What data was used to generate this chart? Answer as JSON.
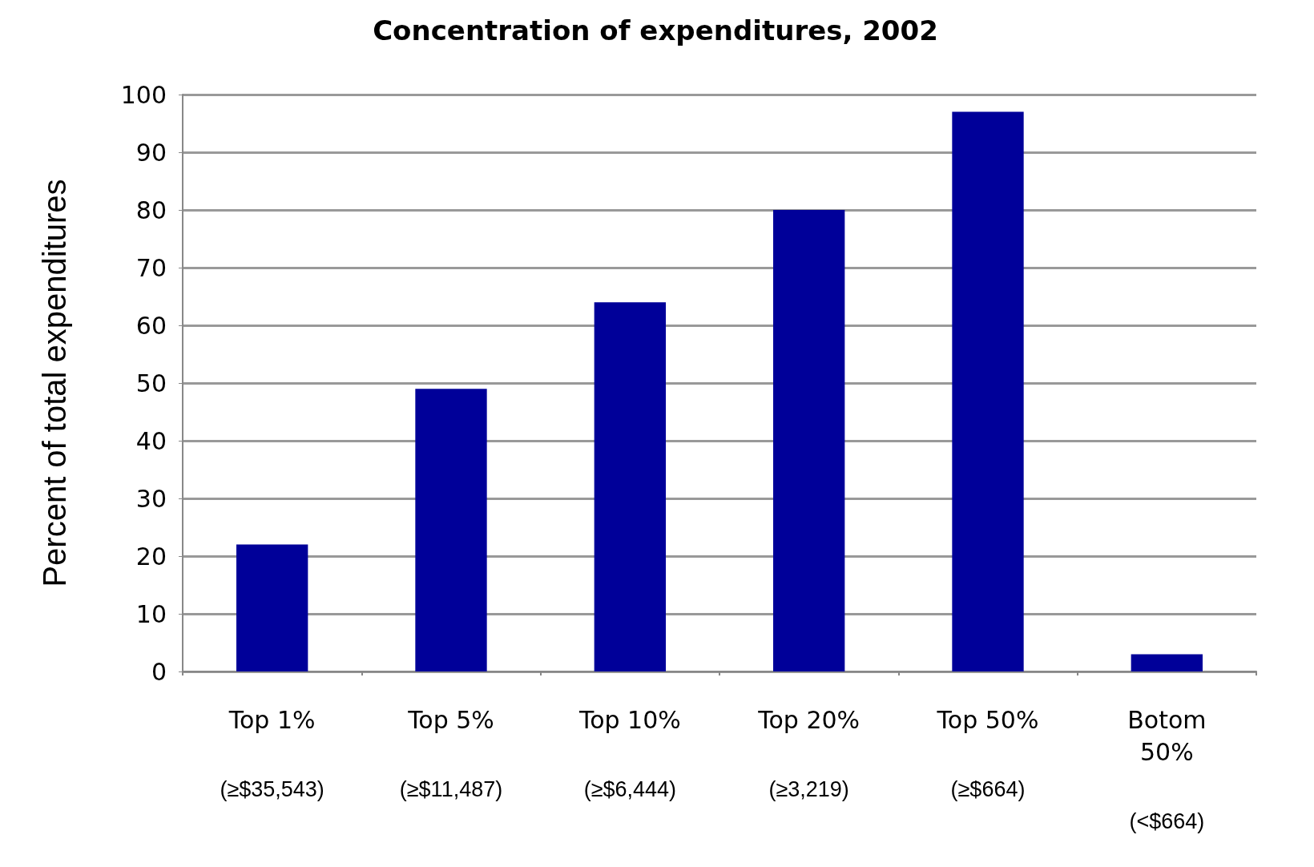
{
  "chart_data": {
    "type": "bar",
    "title": "Concentration of expenditures, 2002",
    "ylabel": "Percent of total expenditures",
    "categories": [
      "Top 1%\n(≥$35,543)",
      "Top 5%\n(≥$11,487)",
      "Top 10%\n(≥$6,444)",
      "Top 20%\n(≥3,219)",
      "Top 50%\n(≥$664)",
      "Botom\n50%\n(<$664)"
    ],
    "values": [
      22,
      49,
      64,
      80,
      97,
      3
    ],
    "color": "#000099",
    "ylim": [
      0,
      100
    ],
    "yticks": [
      0,
      10,
      20,
      30,
      40,
      50,
      60,
      70,
      80,
      90,
      100
    ],
    "grid": "y"
  }
}
